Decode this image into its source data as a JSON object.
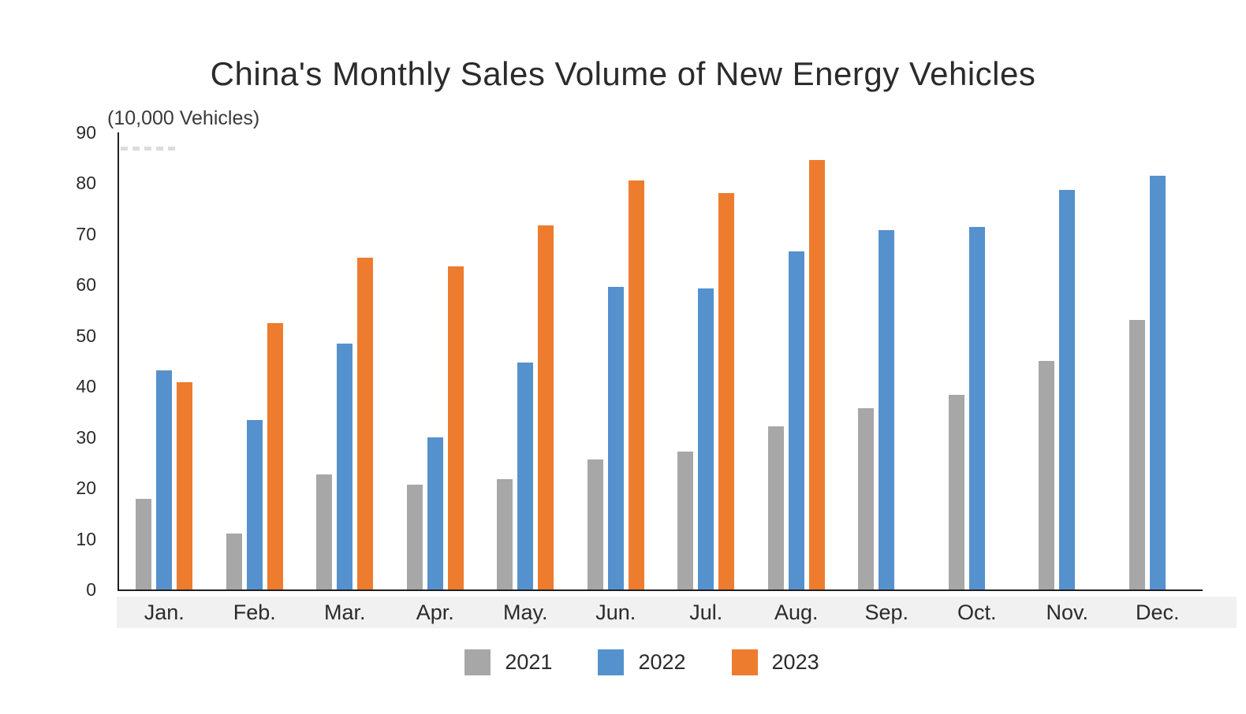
{
  "chart_data": {
    "type": "bar",
    "title": "China's Monthly Sales Volume of New Energy Vehicles",
    "ylabel": "(10,000 Vehicles)",
    "xlabel": "",
    "categories": [
      "Jan.",
      "Feb.",
      "Mar.",
      "Apr.",
      "May.",
      "Jun.",
      "Jul.",
      "Aug.",
      "Sep.",
      "Oct.",
      "Nov.",
      "Dec."
    ],
    "series": [
      {
        "name": "2021",
        "color": "#a7a7a7",
        "values": [
          17.9,
          11.0,
          22.6,
          20.6,
          21.7,
          25.6,
          27.1,
          32.1,
          35.7,
          38.3,
          45.0,
          53.1
        ]
      },
      {
        "name": "2022",
        "color": "#5591cd",
        "values": [
          43.1,
          33.4,
          48.4,
          29.9,
          44.7,
          59.6,
          59.3,
          66.6,
          70.8,
          71.4,
          78.6,
          81.4
        ]
      },
      {
        "name": "2023",
        "color": "#ee7c2f",
        "values": [
          40.8,
          52.5,
          65.3,
          63.6,
          71.7,
          80.6,
          78.0,
          84.6,
          null,
          null,
          null,
          null
        ]
      }
    ],
    "ylim": [
      0,
      90
    ],
    "yticks": [
      0,
      10,
      20,
      30,
      40,
      50,
      60,
      70,
      80,
      90
    ],
    "grid": false,
    "legend_position": "bottom",
    "axis_color": "#1f1f1f",
    "x_band_color": "#f1f1f1"
  }
}
